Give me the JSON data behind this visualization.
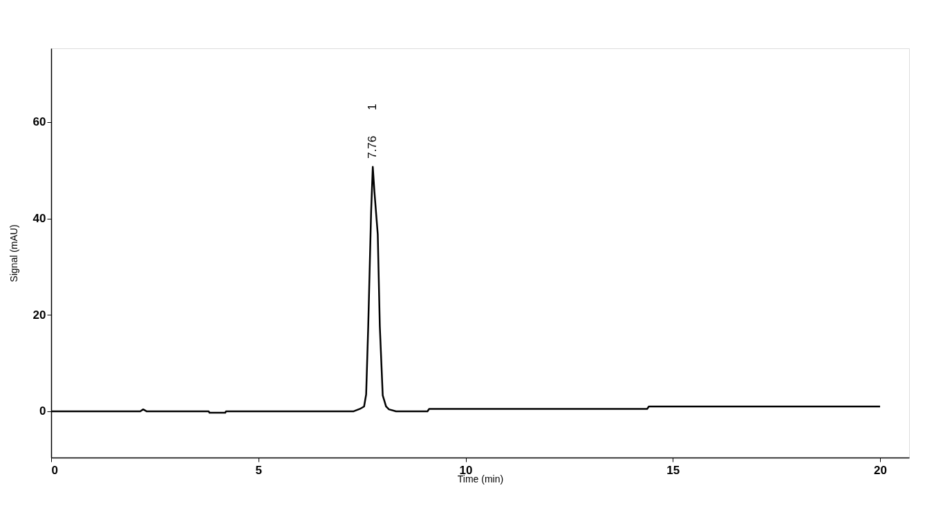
{
  "chart_data": {
    "type": "line",
    "xlabel": "Time (min)",
    "ylabel": "Signal (mAU)",
    "xlim": [
      0,
      20.7
    ],
    "xticks": [
      0,
      5,
      10,
      15,
      20
    ],
    "ylim": [
      -9.6,
      75.3
    ],
    "yticks": [
      0,
      20,
      40,
      60
    ],
    "grid": false,
    "marker": "none",
    "line_style": "solid",
    "series": [
      {
        "color": "#000000",
        "x": [
          0,
          2.15,
          2.22,
          2.3,
          3.8,
          3.82,
          4.2,
          4.22,
          7.3,
          7.45,
          7.55,
          7.6,
          7.65,
          7.72,
          7.76,
          7.8,
          7.88,
          7.93,
          8.0,
          8.08,
          8.15,
          8.32,
          9.08,
          9.12,
          14.38,
          14.42,
          20
        ],
        "values": [
          0,
          0,
          0.4,
          0,
          0,
          -0.3,
          -0.3,
          0,
          0,
          0.5,
          1.0,
          3.5,
          17.6,
          41.4,
          50.7,
          45.5,
          36.7,
          17.6,
          3.3,
          1.0,
          0.4,
          0,
          0,
          0.5,
          0.5,
          1.0,
          1.0
        ]
      }
    ],
    "annotations": [
      {
        "text": "7.76",
        "x": 7.76,
        "y": 50.7
      },
      "1"
    ]
  }
}
